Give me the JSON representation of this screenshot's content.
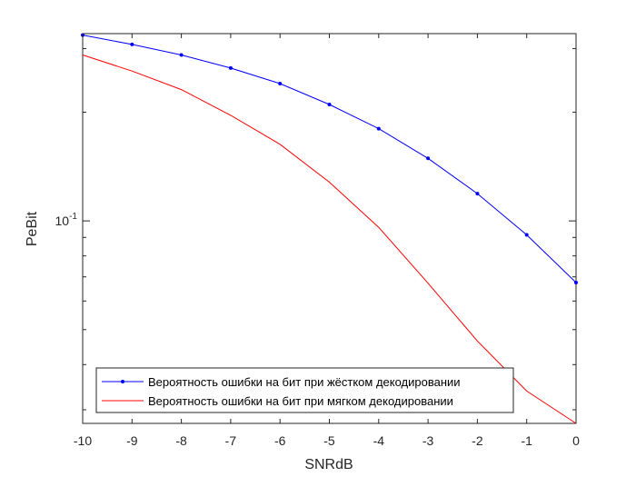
{
  "chart_data": {
    "type": "line",
    "xlabel": "SNRdB",
    "ylabel": "PeBit",
    "xlim": [
      -10,
      0
    ],
    "ylim": [
      0.0275,
      0.33
    ],
    "yscale": "log",
    "grid": false,
    "legend_position": "bottom-left",
    "x": [
      -10,
      -9,
      -8,
      -7,
      -6,
      -5,
      -4,
      -3,
      -2,
      -1,
      0
    ],
    "xticks": [
      "-10",
      "-9",
      "-8",
      "-7",
      "-6",
      "-5",
      "-4",
      "-3",
      "-2",
      "-1",
      "0"
    ],
    "yticks": [
      {
        "base": "10",
        "exp": "-1",
        "value": 0.1
      }
    ],
    "series": [
      {
        "name": "Вероятность ошибки на бит при жёстком декодировании",
        "color": "#0000ff",
        "marker": "dot",
        "values": [
          0.327,
          0.308,
          0.288,
          0.265,
          0.24,
          0.21,
          0.18,
          0.149,
          0.119,
          0.0915,
          0.0675
        ]
      },
      {
        "name": "Вероятность ошибки на бит при мягком декодировании",
        "color": "#ff0000",
        "marker": "none",
        "values": [
          0.288,
          0.26,
          0.231,
          0.196,
          0.163,
          0.128,
          0.096,
          0.0672,
          0.0465,
          0.0338,
          0.0275
        ]
      }
    ]
  }
}
